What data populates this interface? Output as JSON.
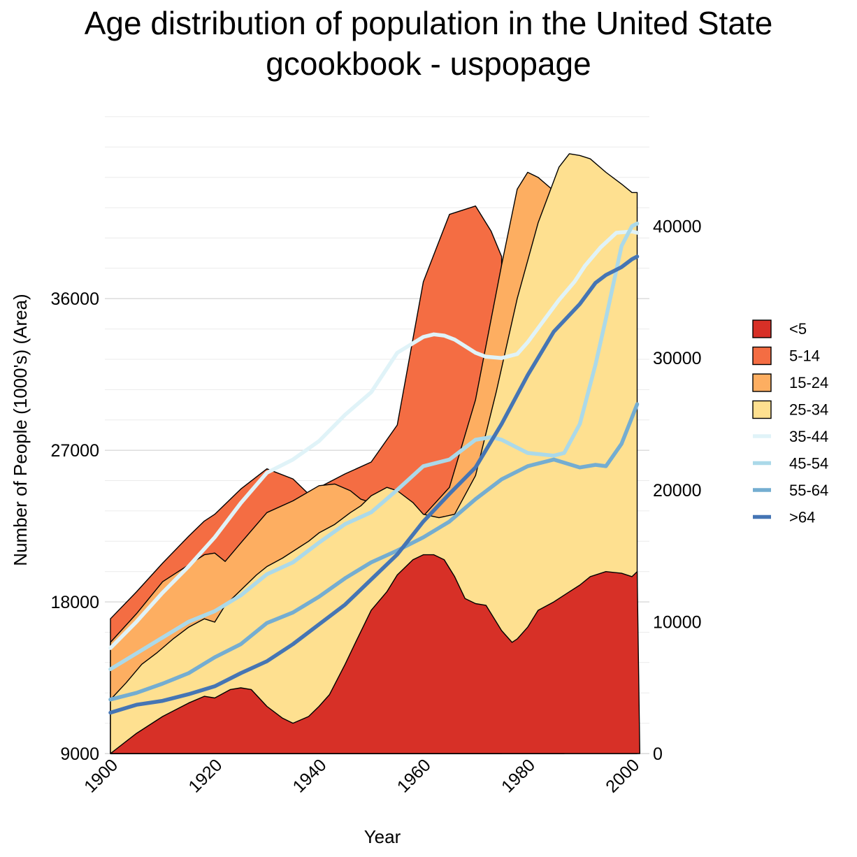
{
  "title": "Age distribution of population in the United State",
  "subtitle": "gcookbook - uspopage",
  "chart_data": {
    "type": "area",
    "xlabel": "Year",
    "ylabel": "Number of People (1000's) (Area)",
    "x_ticks": [
      "1900",
      "1920",
      "1940",
      "1960",
      "1980",
      "2000"
    ],
    "xlim": [
      1900,
      2002
    ],
    "y_left": {
      "ticks": [
        "9000",
        "18000",
        "27000",
        "36000"
      ],
      "range": [
        9000,
        48000
      ],
      "minor_every": 1800,
      "grid": true
    },
    "y_right": {
      "ticks": [
        "0",
        "10000",
        "20000",
        "30000",
        "40000"
      ],
      "range": [
        0,
        40000
      ],
      "unit_px": 0.01886
    },
    "area_series": [
      {
        "name": "<5",
        "color": "#d73027",
        "x": [
          1900,
          1905,
          1910,
          1915,
          1918,
          1920,
          1923,
          1925,
          1927,
          1930,
          1933,
          1935,
          1938,
          1940,
          1942,
          1945,
          1947,
          1950,
          1953,
          1955,
          1958,
          1960,
          1962,
          1964,
          1966,
          1968,
          1970,
          1972,
          1975,
          1977,
          1978,
          1980,
          1982,
          1985,
          1988,
          1990,
          1992,
          1995,
          1998,
          2000,
          2001,
          2001.5
        ],
        "y": [
          9000,
          10200,
          11200,
          12000,
          12400,
          12300,
          12800,
          12900,
          12800,
          11800,
          11100,
          10800,
          11200,
          11800,
          12500,
          14300,
          15600,
          17500,
          18600,
          19600,
          20500,
          20800,
          20800,
          20500,
          19500,
          18200,
          17900,
          17800,
          16300,
          15600,
          15800,
          16500,
          17500,
          18000,
          18600,
          19000,
          19500,
          19800,
          19700,
          19500,
          19800,
          9000
        ],
        "offset": [
          0.0,
          0.02,
          0.05,
          0.11,
          0.15,
          0.16,
          0.23,
          0.25,
          0.27,
          0.1,
          -0.27,
          -0.42,
          -0.42,
          -0.41,
          0.43,
          1.3,
          2.46,
          3.96,
          5.84,
          7.41,
          9.73,
          11.2,
          13.5,
          15.0,
          16.0,
          16.1,
          16.0,
          14.4,
          13.2,
          12.5,
          12.8,
          13.0,
          13.2,
          13.4,
          13.8,
          14.0,
          14.2,
          14.5,
          14.6,
          14.6,
          14.6,
          0
        ]
      },
      {
        "name": "5-14",
        "color": "#f46d43",
        "x": [
          1900,
          1905,
          1910,
          1915,
          1918,
          1920,
          1925,
          1930,
          1935,
          1938,
          1940,
          1945,
          1950,
          1955,
          1960,
          1965,
          1970,
          1973,
          1975
        ],
        "y": [
          17000,
          18600,
          20300,
          21900,
          22800,
          23200,
          24700,
          25900,
          25300,
          24400,
          24800,
          25600,
          26300,
          28500,
          37000,
          41000,
          41500,
          40000,
          38500
        ]
      },
      {
        "name": "15-24",
        "color": "#fdae61",
        "x": [
          1900,
          1905,
          1910,
          1915,
          1918,
          1920,
          1922,
          1925,
          1930,
          1935,
          1940,
          1943,
          1946,
          1948,
          1950,
          1955,
          1960,
          1965,
          1970,
          1975,
          1978,
          1980,
          1982,
          1985,
          1987
        ],
        "y": [
          15600,
          17300,
          19200,
          20200,
          20800,
          20900,
          20400,
          21500,
          23300,
          24000,
          24900,
          25000,
          24600,
          24100,
          23900,
          23700,
          23100,
          24800,
          30000,
          38000,
          42500,
          43500,
          43200,
          42400,
          41800
        ]
      },
      {
        "name": "25-34",
        "color": "#fee090",
        "x": [
          1900,
          1903,
          1906,
          1909,
          1912,
          1915,
          1918,
          1920,
          1922,
          1925,
          1928,
          1930,
          1933,
          1936,
          1938,
          1940,
          1943,
          1946,
          1948,
          1950,
          1953,
          1955,
          1958,
          1960,
          1963,
          1966,
          1970,
          1974,
          1978,
          1982,
          1986,
          1988,
          1990,
          1992,
          1995,
          1998,
          2000,
          2001
        ],
        "y": [
          12200,
          13200,
          14300,
          15000,
          15800,
          16500,
          17000,
          16800,
          17800,
          18700,
          19600,
          20100,
          20600,
          21200,
          21600,
          22100,
          22600,
          23300,
          23700,
          24300,
          24800,
          24600,
          23900,
          23200,
          23000,
          23200,
          25500,
          30500,
          36000,
          40500,
          43800,
          44600,
          44500,
          44300,
          43500,
          42800,
          42300,
          42300
        ]
      }
    ],
    "line_series": [
      {
        "name": "35-44",
        "color": "#e0f3f8",
        "x": [
          1900,
          1905,
          1910,
          1915,
          1920,
          1925,
          1930,
          1935,
          1940,
          1945,
          1950,
          1955,
          1960,
          1962,
          1964,
          1966,
          1968,
          1970,
          1972,
          1975,
          1978,
          1980,
          1983,
          1986,
          1989,
          1991,
          1994,
          1997,
          2000,
          2001
        ],
        "y": [
          8000,
          10000,
          12200,
          14200,
          16400,
          19000,
          21300,
          22300,
          23700,
          25700,
          27400,
          30400,
          31600,
          31800,
          31700,
          31400,
          30900,
          30400,
          30100,
          30000,
          30300,
          31200,
          32800,
          34400,
          35800,
          37000,
          38400,
          39500,
          39600,
          39500
        ]
      },
      {
        "name": "45-54",
        "color": "#abd9e9",
        "x": [
          1900,
          1905,
          1910,
          1915,
          1920,
          1925,
          1930,
          1935,
          1940,
          1945,
          1950,
          1955,
          1960,
          1965,
          1970,
          1973,
          1975,
          1978,
          1980,
          1985,
          1987,
          1990,
          1993,
          1995,
          1998,
          2000,
          2001
        ],
        "y": [
          6400,
          7600,
          8800,
          10000,
          10800,
          12000,
          13600,
          14500,
          16000,
          17400,
          18300,
          20000,
          21800,
          22300,
          23800,
          24000,
          23800,
          23200,
          22800,
          22600,
          22800,
          25000,
          29500,
          33000,
          38500,
          40000,
          40200
        ]
      },
      {
        "name": "55-64",
        "color": "#74add1",
        "x": [
          1900,
          1905,
          1910,
          1915,
          1920,
          1925,
          1930,
          1935,
          1940,
          1945,
          1950,
          1955,
          1960,
          1965,
          1970,
          1975,
          1980,
          1985,
          1990,
          1993,
          1995,
          1998,
          2000,
          2001
        ],
        "y": [
          4100,
          4600,
          5300,
          6100,
          7300,
          8300,
          9900,
          10700,
          11900,
          13300,
          14500,
          15400,
          16400,
          17600,
          19300,
          20800,
          21800,
          22300,
          21700,
          21900,
          21800,
          23500,
          25500,
          26500
        ]
      },
      {
        "name": ">64",
        "color": "#4575b4",
        "x": [
          1900,
          1905,
          1910,
          1915,
          1920,
          1925,
          1930,
          1935,
          1940,
          1945,
          1950,
          1955,
          1960,
          1965,
          1970,
          1975,
          1980,
          1985,
          1990,
          1993,
          1995,
          1998,
          2000,
          2001
        ],
        "y": [
          3100,
          3700,
          4000,
          4500,
          5100,
          6100,
          7000,
          8300,
          9800,
          11300,
          13200,
          15100,
          17600,
          19700,
          21700,
          25000,
          28700,
          32000,
          34100,
          35700,
          36300,
          36900,
          37500,
          37700
        ]
      }
    ],
    "legend": {
      "position": "right",
      "items": [
        "<5",
        "5-14",
        "15-24",
        "25-34",
        "35-44",
        "45-54",
        "55-64",
        ">64"
      ]
    },
    "grid": true,
    "background": "#ffffff",
    "border_color": "#000000"
  }
}
